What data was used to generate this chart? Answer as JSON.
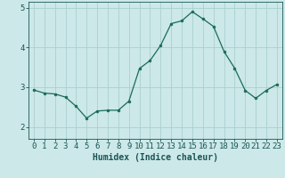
{
  "x": [
    0,
    1,
    2,
    3,
    4,
    5,
    6,
    7,
    8,
    9,
    10,
    11,
    12,
    13,
    14,
    15,
    16,
    17,
    18,
    19,
    20,
    21,
    22,
    23
  ],
  "y": [
    2.93,
    2.85,
    2.83,
    2.75,
    2.52,
    2.22,
    2.4,
    2.42,
    2.42,
    2.65,
    3.47,
    3.67,
    4.05,
    4.6,
    4.67,
    4.9,
    4.72,
    4.53,
    3.9,
    3.48,
    2.92,
    2.72,
    2.92,
    3.07
  ],
  "line_color": "#1a6b5a",
  "marker": "o",
  "marker_size": 2.0,
  "bg_color": "#cce8e8",
  "grid_color": "#aacfcf",
  "xlabel": "Humidex (Indice chaleur)",
  "xlabel_fontsize": 7,
  "tick_color": "#1a5555",
  "tick_fontsize": 6.5,
  "ylim": [
    1.7,
    5.15
  ],
  "xlim": [
    -0.5,
    23.5
  ],
  "yticks": [
    2,
    3,
    4,
    5
  ],
  "xticks": [
    0,
    1,
    2,
    3,
    4,
    5,
    6,
    7,
    8,
    9,
    10,
    11,
    12,
    13,
    14,
    15,
    16,
    17,
    18,
    19,
    20,
    21,
    22,
    23
  ]
}
